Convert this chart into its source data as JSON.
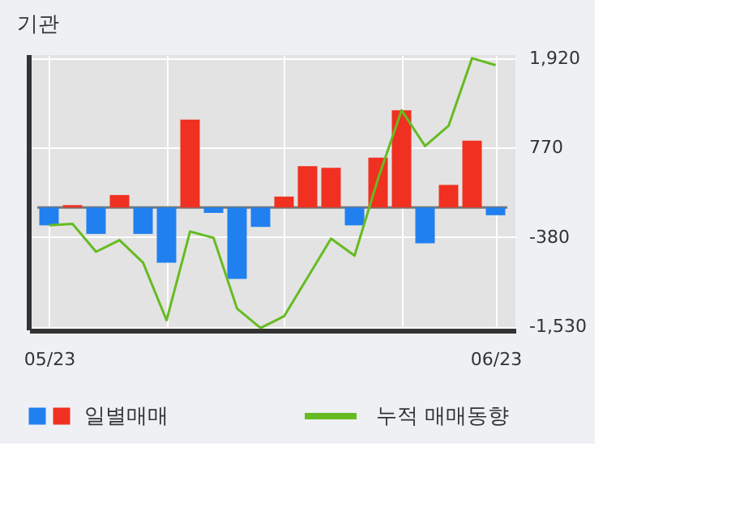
{
  "chart_data": {
    "type": "bar",
    "title": "기관",
    "categories": [
      "05/23",
      null,
      null,
      null,
      null,
      null,
      null,
      null,
      null,
      null,
      null,
      null,
      null,
      null,
      null,
      null,
      null,
      null,
      null,
      "06/23"
    ],
    "series": [
      {
        "name": "일별매매",
        "colors": [
          "#2080f0",
          "#f03020",
          "#2080f0",
          "#f03020",
          "#2080f0",
          "#2080f0",
          "#f03020",
          "#2080f0",
          "#2080f0",
          "#2080f0",
          "#f03020",
          "#f03020",
          "#f03020",
          "#2080f0",
          "#f03020",
          "#f03020",
          "#2080f0",
          "#f03020",
          "#f03020",
          "#2080f0"
        ],
        "values": [
          -230,
          30,
          -340,
          160,
          -340,
          -710,
          1130,
          -70,
          -920,
          -250,
          140,
          530,
          510,
          -230,
          640,
          1250,
          -460,
          290,
          860,
          -100
        ]
      },
      {
        "name": "누적 매매동향",
        "type": "line",
        "color": "#66bb22",
        "values": [
          -230,
          -210,
          -570,
          -420,
          -710,
          -1450,
          -310,
          -390,
          -1300,
          -1550,
          -1400,
          -900,
          -400,
          -620,
          370,
          1250,
          790,
          1050,
          1920,
          1830
        ]
      }
    ],
    "ylim": [
      -1580,
      1960
    ],
    "yticks": [
      {
        "value": 1920,
        "label": "1,920"
      },
      770,
      {
        "value": -380,
        "label": "-380"
      },
      {
        "value": -1530,
        "label": "-1,530"
      }
    ],
    "grid": true,
    "legend": "bottom"
  }
}
